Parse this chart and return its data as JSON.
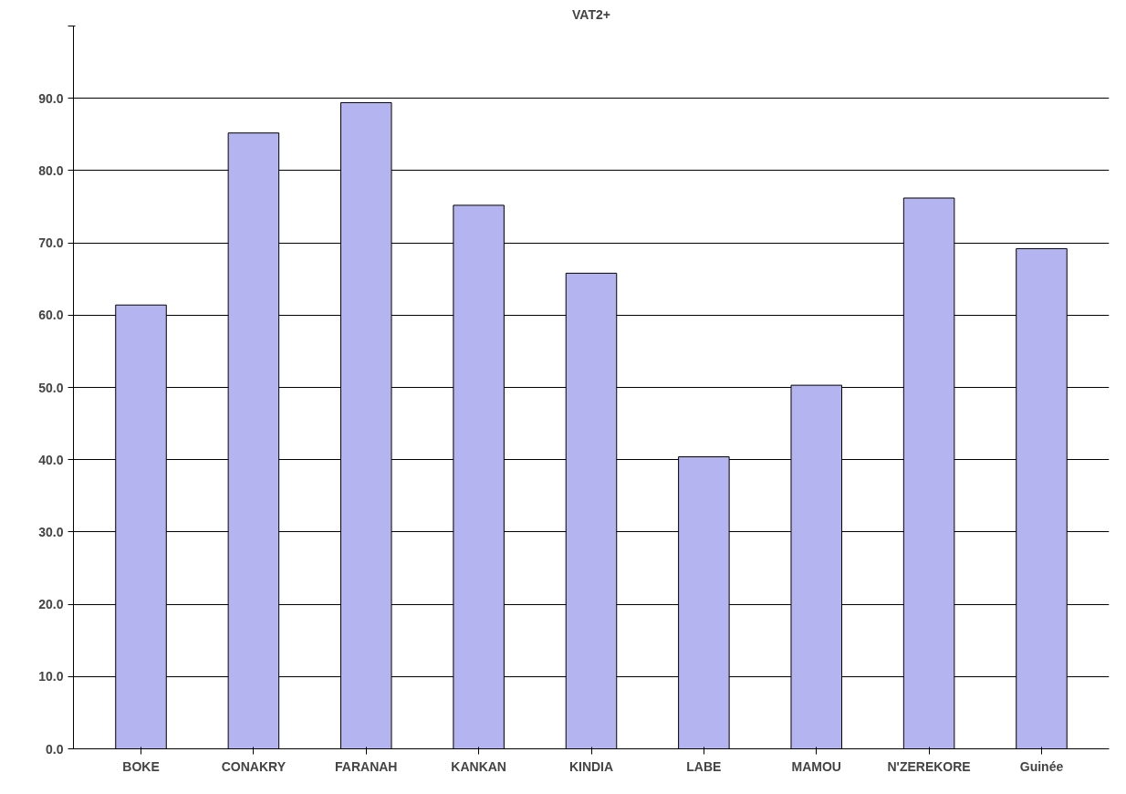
{
  "chart_data": {
    "type": "bar",
    "title": "VAT2+",
    "categories": [
      "BOKE",
      "CONAKRY",
      "FARANAH",
      "KANKAN",
      "KINDIA",
      "LABE",
      "MAMOU",
      "N'ZEREKORE",
      "Guinée"
    ],
    "values": [
      61.4,
      85.2,
      89.4,
      75.2,
      65.8,
      40.4,
      50.3,
      76.2,
      69.2
    ],
    "color": "#b4b4f0",
    "ylim": [
      0,
      100
    ],
    "yticks": [
      {
        "value": 0,
        "label": "0.0"
      },
      {
        "value": 10,
        "label": "10.0"
      },
      {
        "value": 20,
        "label": "20.0"
      },
      {
        "value": 30,
        "label": "30.0"
      },
      {
        "value": 40,
        "label": "40.0"
      },
      {
        "value": 50,
        "label": "50.0"
      },
      {
        "value": 60,
        "label": "60.0"
      },
      {
        "value": 70,
        "label": "70.0"
      },
      {
        "value": 80,
        "label": "80.0"
      },
      {
        "value": 90,
        "label": "90.0"
      },
      {
        "value": 100,
        "label": null
      }
    ],
    "grid": "y"
  }
}
